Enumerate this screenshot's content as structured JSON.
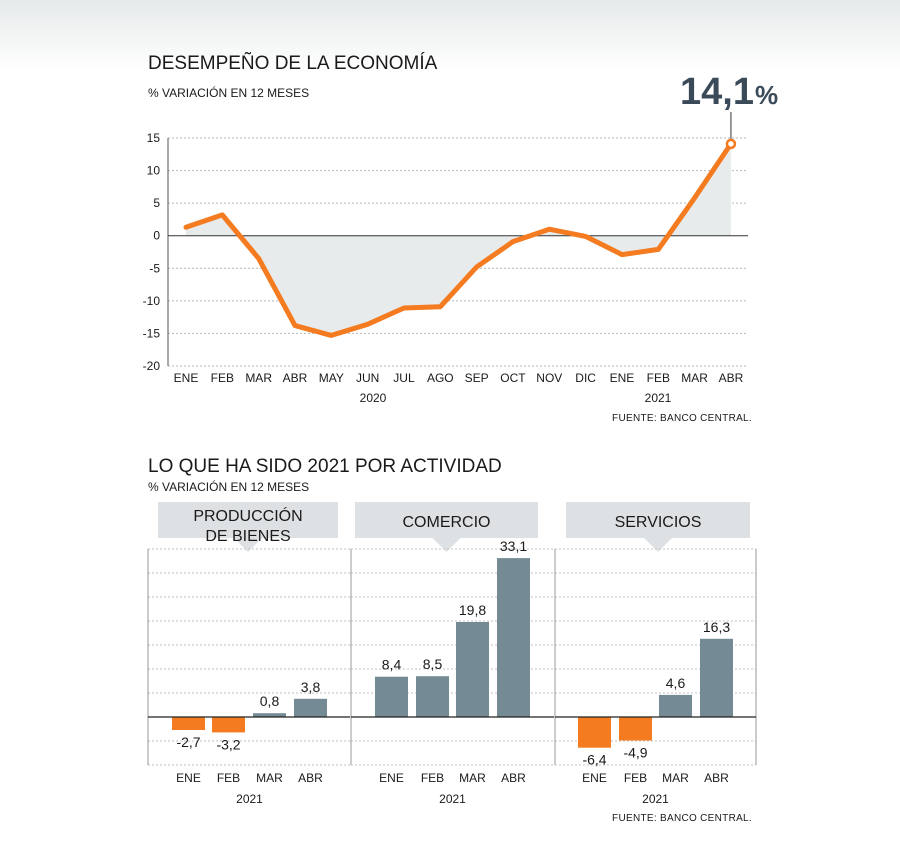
{
  "chart_data": [
    {
      "type": "line",
      "title": "DESEMPEÑO DE LA ECONOMÍA",
      "subtitle": "% VARIACIÓN EN 12 MESES",
      "highlight_label": "14,1",
      "highlight_unit": "%",
      "categories": [
        "ENE",
        "FEB",
        "MAR",
        "ABR",
        "MAY",
        "JUN",
        "JUL",
        "AGO",
        "SEP",
        "OCT",
        "NOV",
        "DIC",
        "ENE",
        "FEB",
        "MAR",
        "ABR"
      ],
      "year_labels": [
        "2020",
        "2021"
      ],
      "values": [
        1.3,
        3.2,
        -3.5,
        -13.8,
        -15.3,
        -13.6,
        -11.1,
        -10.9,
        -4.8,
        -0.9,
        1.0,
        -0.1,
        -2.9,
        -2.1,
        5.8,
        14.1
      ],
      "ylim": [
        -20,
        15
      ],
      "yticks": [
        15,
        10,
        5,
        0,
        -5,
        -10,
        -15,
        -20
      ],
      "grid": true,
      "source": "FUENTE: BANCO CENTRAL."
    },
    {
      "type": "bar",
      "title": "LO QUE HA SIDO 2021 POR ACTIVIDAD",
      "subtitle": "% VARIACIÓN EN 12 MESES",
      "categories": [
        "ENE",
        "FEB",
        "MAR",
        "ABR"
      ],
      "year_label": "2021",
      "panels": [
        {
          "name_lines": [
            "PRODUCCIÓN",
            "DE BIENES"
          ],
          "values": [
            -2.7,
            -3.2,
            0.8,
            3.8
          ],
          "labels": [
            "-2,7",
            "-3,2",
            "0,8",
            "3,8"
          ]
        },
        {
          "name_lines": [
            "COMERCIO"
          ],
          "values": [
            8.4,
            8.5,
            19.8,
            33.1
          ],
          "labels": [
            "8,4",
            "8,5",
            "19,8",
            "33,1"
          ]
        },
        {
          "name_lines": [
            "SERVICIOS"
          ],
          "values": [
            -6.4,
            -4.9,
            4.6,
            16.3
          ],
          "labels": [
            "-6,4",
            "-4,9",
            "4,6",
            "16,3"
          ]
        }
      ],
      "colors": {
        "positive": "#748a95",
        "negative": "#f47b20"
      },
      "grid": true,
      "source": "FUENTE: BANCO CENTRAL."
    }
  ],
  "colors": {
    "line": "#f47b20",
    "area": "#e8ebec",
    "highlight": "#3a4a58"
  }
}
